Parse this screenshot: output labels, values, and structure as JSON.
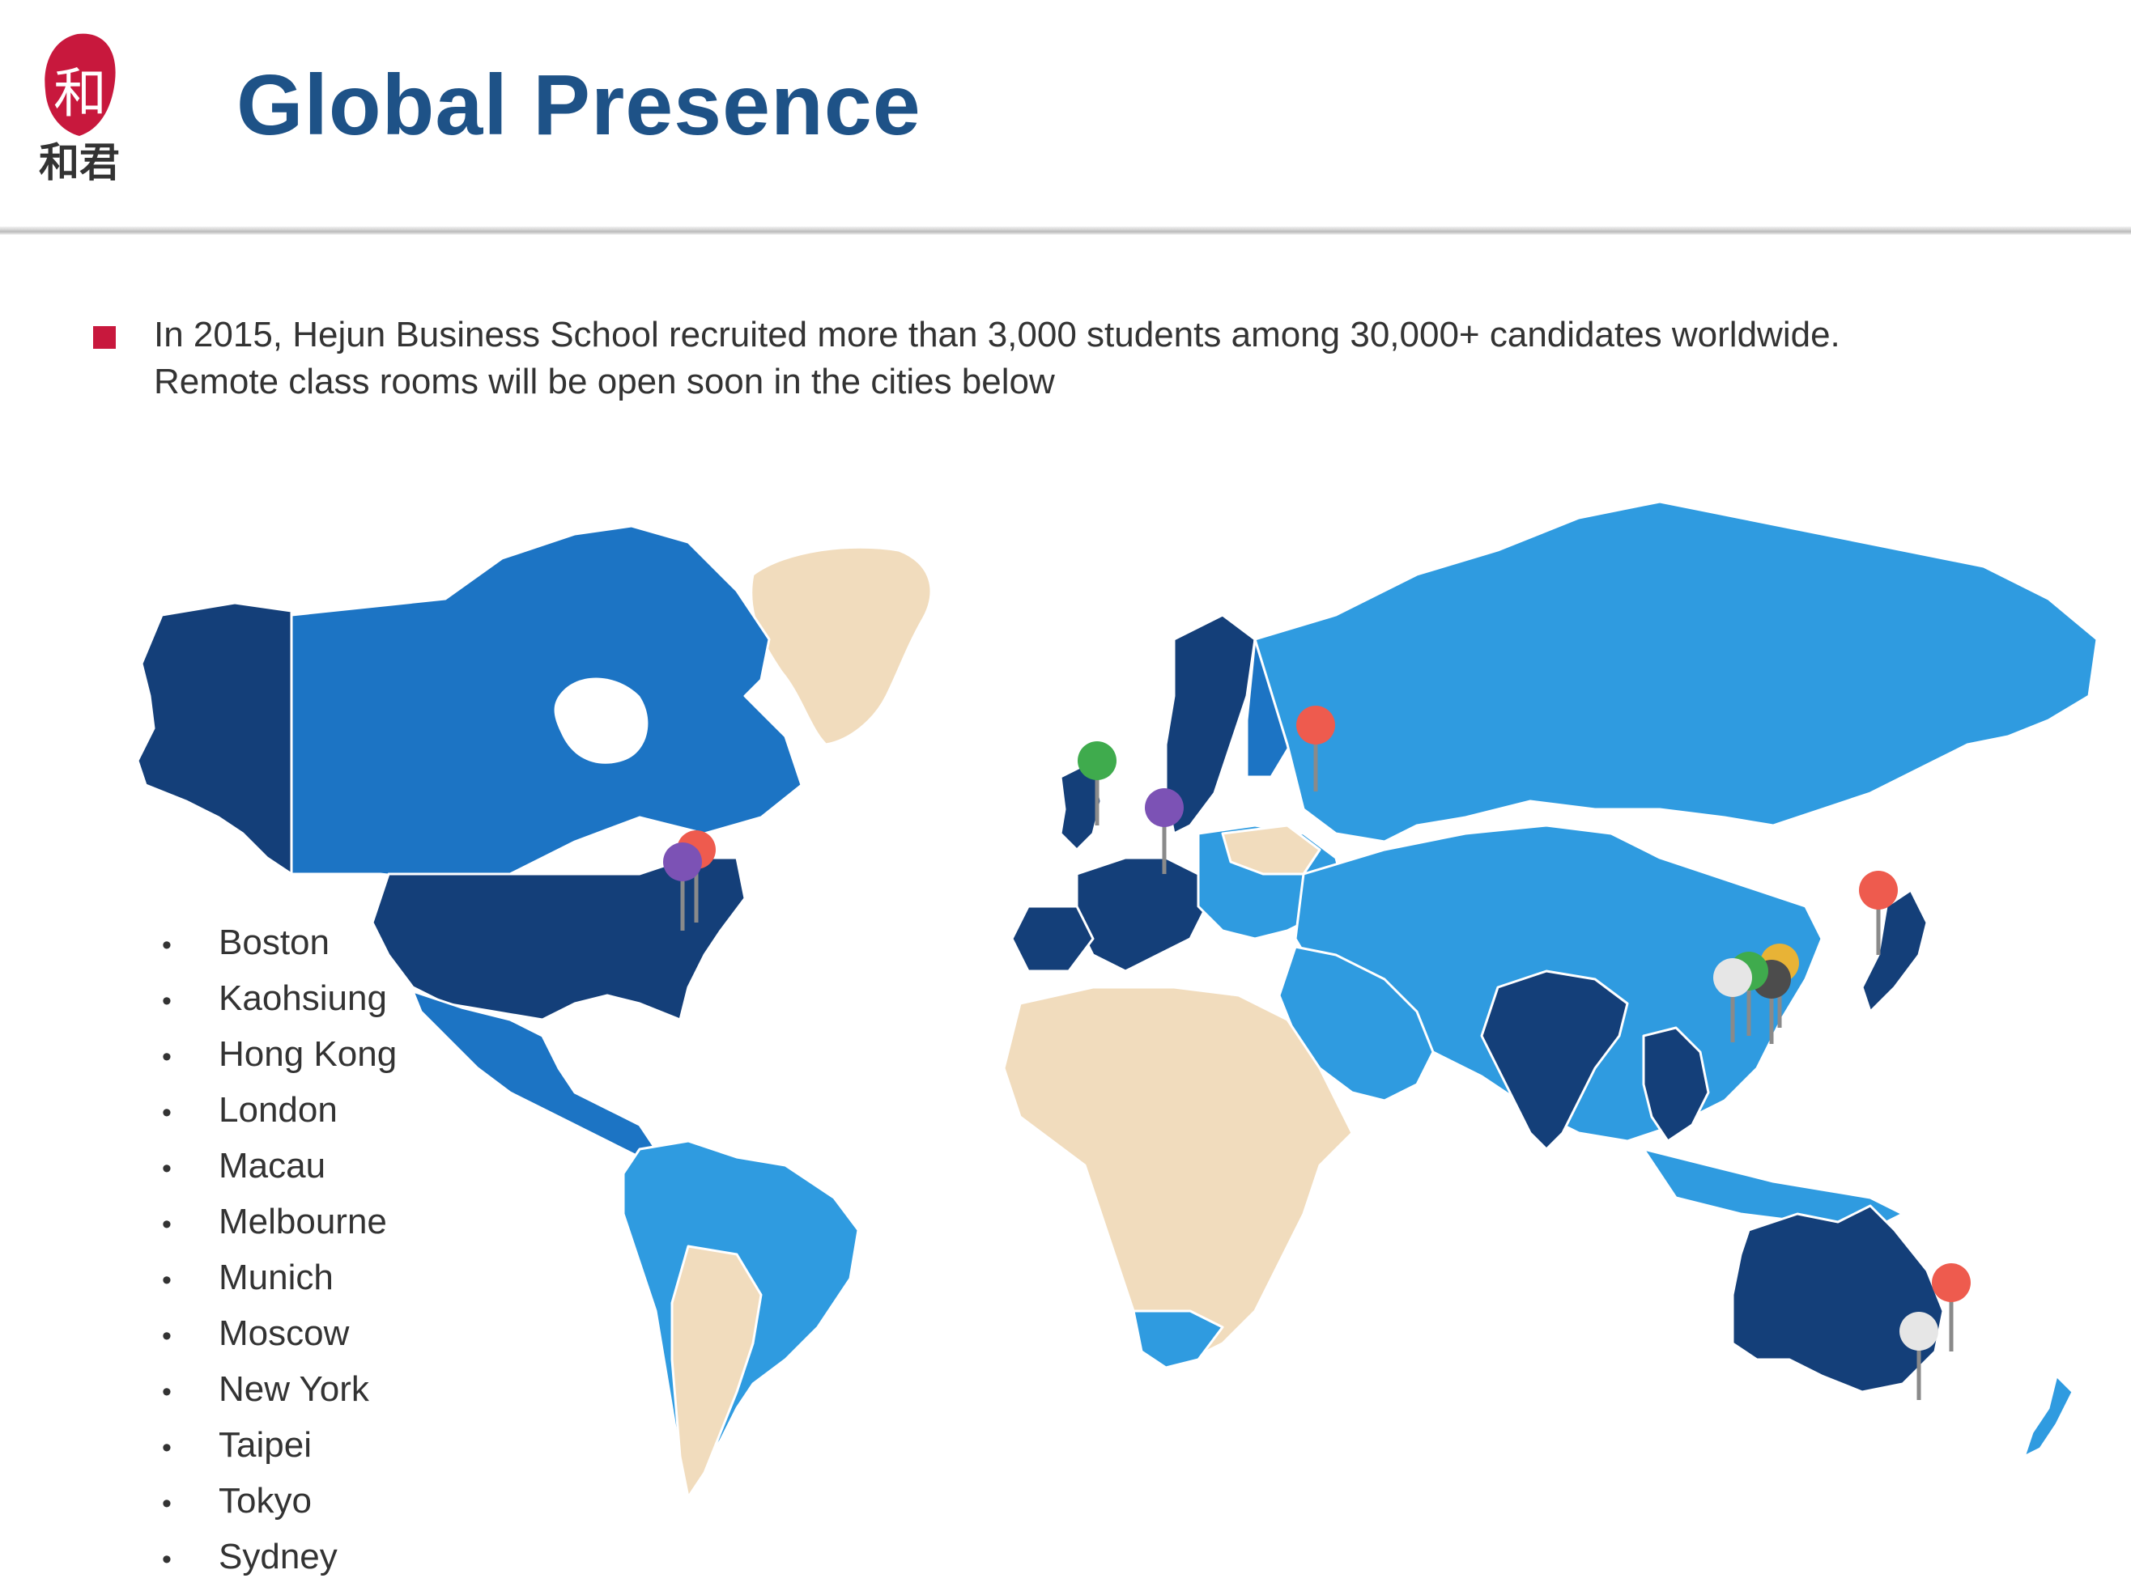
{
  "header": {
    "logo_text": "和君",
    "title": "Global Presence"
  },
  "intro": {
    "line1": "In 2015, Hejun Business School recruited more than 3,000 students among 30,000+ candidates worldwide.",
    "line2": "Remote class rooms will be open soon in the cities below"
  },
  "cities": [
    "Boston",
    "Kaohsiung",
    "Hong Kong",
    "London",
    "Macau",
    "Melbourne",
    "Munich",
    "Moscow",
    "New York",
    "Taipei",
    "Tokyo",
    "Sydney"
  ],
  "bullet": "•",
  "colors": {
    "title": "#1e5287",
    "marker": "#c8183d",
    "region_dark": "#143f79",
    "region_medium": "#1c74c4",
    "region_light": "#2f9be0",
    "region_other": "#f1dcbd",
    "pin_red": "#ee5b4e",
    "pin_purple": "#7c52b5",
    "pin_green": "#3fab4d",
    "pin_yellow": "#e8b336",
    "pin_white": "#e6e6e6",
    "pin_dark": "#4c4c4c"
  }
}
